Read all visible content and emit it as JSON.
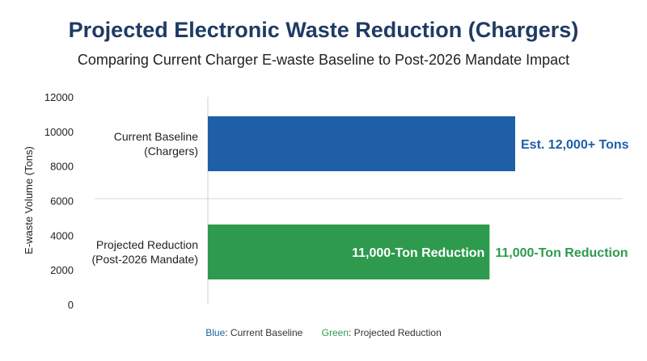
{
  "title": "Projected Electronic Waste Reduction (Chargers)",
  "subtitle": "Comparing Current Charger E-waste Baseline to Post-2026 Mandate Impact",
  "chart_data": {
    "type": "bar",
    "orientation": "horizontal",
    "ylabel": "E-waste Volume (Tons)",
    "yticks": [
      0,
      2000,
      4000,
      6000,
      8000,
      10000,
      12000
    ],
    "ylim": [
      0,
      12000
    ],
    "categories": [
      {
        "lines": [
          "Current Baseline",
          "(Chargers)"
        ],
        "value": 12000,
        "color": "#1e5fa7",
        "inner_label": "",
        "outer_label": "Est. 12,000+ Tons",
        "outer_color": "#1e5fa7"
      },
      {
        "lines": [
          "Projected Reduction",
          "(Post-2026 Mandate)"
        ],
        "value": 11000,
        "color": "#2e9a4e",
        "inner_label": "11,000-Ton Reduction",
        "outer_label": "11,000-Ton Reduction",
        "outer_color": "#2e9a4e"
      }
    ],
    "grid": true
  },
  "legend": [
    {
      "key": "Blue",
      "text": ": Current Baseline",
      "color": "#1e5fa7"
    },
    {
      "key": "Green",
      "text": ": Projected Reduction",
      "color": "#2e9a4e"
    }
  ]
}
